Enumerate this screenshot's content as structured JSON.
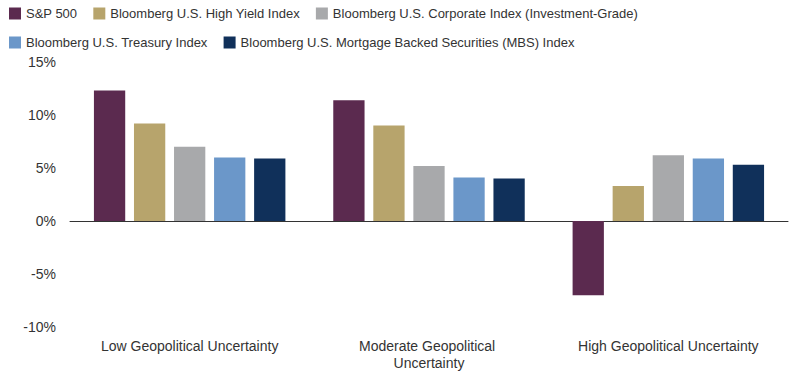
{
  "chart_data": {
    "type": "bar",
    "categories": [
      "Low Geopolitical Uncertainty",
      "Moderate Geopolitical Uncertainty",
      "High Geopolitical Uncertainty"
    ],
    "series": [
      {
        "name": "S&P 500",
        "color": "#5b2a4f",
        "values": [
          12.3,
          11.4,
          -7.0
        ]
      },
      {
        "name": "Bloomberg U.S. High Yield Index",
        "color": "#b7a46c",
        "values": [
          9.2,
          9.0,
          3.3
        ]
      },
      {
        "name": "Bloomberg U.S. Corporate Index (Investment-Grade)",
        "color": "#a8a9ab",
        "values": [
          7.0,
          5.2,
          6.2
        ]
      },
      {
        "name": "Bloomberg U.S. Treasury Index",
        "color": "#6b97c9",
        "values": [
          6.0,
          4.1,
          5.9
        ]
      },
      {
        "name": "Bloomberg U.S. Mortgage Backed Securities (MBS) Index",
        "color": "#10305a",
        "values": [
          5.9,
          4.0,
          5.3
        ]
      }
    ],
    "ylim": [
      -10,
      15
    ],
    "yticks": [
      {
        "value": -10,
        "label": "-10%"
      },
      {
        "value": -5,
        "label": "-5%"
      },
      {
        "value": 0,
        "label": "0%"
      },
      {
        "value": 5,
        "label": "5%"
      },
      {
        "value": 10,
        "label": "10%"
      },
      {
        "value": 15,
        "label": "15%"
      }
    ],
    "grid": false,
    "legend": "upper left"
  }
}
